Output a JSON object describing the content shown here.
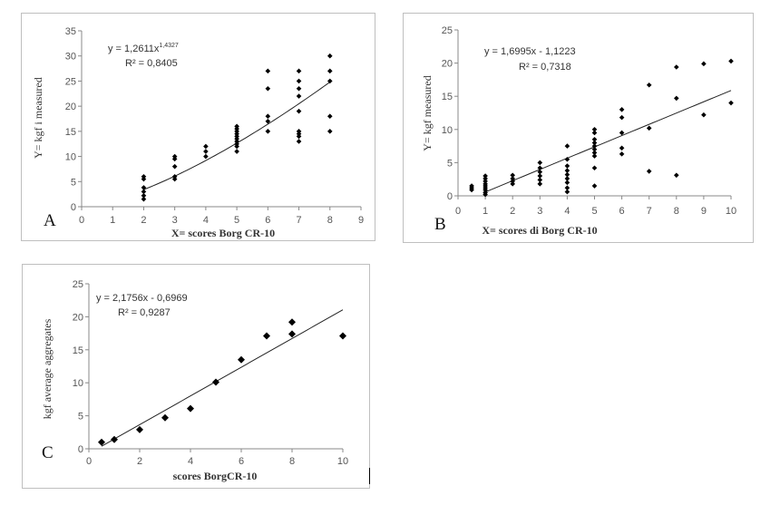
{
  "chart_data": [
    {
      "type": "scatter",
      "panel_label": "A",
      "xlabel": "X= scores Borg CR-10",
      "ylabel": "Y= kgf i measured",
      "xlim": [
        0,
        9
      ],
      "ylim": [
        0,
        35
      ],
      "xticks": [
        "0",
        "1",
        "2",
        "3",
        "4",
        "5",
        "6",
        "7",
        "8",
        "9"
      ],
      "yticks": [
        "0",
        "5",
        "10",
        "15",
        "20",
        "25",
        "30",
        "35"
      ],
      "equation": "y = 1,2611x",
      "equation_exp": "1,4327",
      "r2": "R² = 0,8405",
      "fit": {
        "kind": "power",
        "a": 1.2611,
        "b": 1.4327,
        "x_range": [
          2,
          8
        ]
      },
      "series": [
        {
          "points": [
            [
              2,
              1.5
            ],
            [
              2,
              2.2
            ],
            [
              2,
              3
            ],
            [
              2,
              3.8
            ],
            [
              2,
              5.5
            ],
            [
              2,
              6
            ],
            [
              3,
              5.5
            ],
            [
              3,
              6
            ],
            [
              3,
              8
            ],
            [
              3,
              9.5
            ],
            [
              3,
              10
            ],
            [
              4,
              10
            ],
            [
              4,
              11
            ],
            [
              4,
              12
            ],
            [
              5,
              11
            ],
            [
              5,
              12
            ],
            [
              5,
              12.5
            ],
            [
              5,
              13
            ],
            [
              5,
              13.5
            ],
            [
              5,
              14
            ],
            [
              5,
              14.5
            ],
            [
              5,
              15
            ],
            [
              5,
              15.5
            ],
            [
              5,
              16
            ],
            [
              6,
              15
            ],
            [
              6,
              17
            ],
            [
              6,
              18
            ],
            [
              6,
              23.5
            ],
            [
              6,
              27
            ],
            [
              7,
              13
            ],
            [
              7,
              14
            ],
            [
              7,
              14.5
            ],
            [
              7,
              15
            ],
            [
              7,
              19
            ],
            [
              7,
              22
            ],
            [
              7,
              23.5
            ],
            [
              7,
              25
            ],
            [
              7,
              27
            ],
            [
              8,
              15
            ],
            [
              8,
              18
            ],
            [
              8,
              25
            ],
            [
              8,
              27
            ],
            [
              8,
              30
            ]
          ]
        }
      ]
    },
    {
      "type": "scatter",
      "panel_label": "B",
      "xlabel": "X= scores di Borg CR-10",
      "ylabel": "Y= kgf measured",
      "xlim": [
        0,
        10
      ],
      "ylim": [
        0,
        25
      ],
      "xticks": [
        "0",
        "1",
        "2",
        "3",
        "4",
        "5",
        "6",
        "7",
        "8",
        "9",
        "10"
      ],
      "yticks": [
        "0",
        "5",
        "10",
        "15",
        "20",
        "25"
      ],
      "equation": "y = 1,6995x - 1,1223",
      "equation_exp": "",
      "r2": "R² = 0,7318",
      "fit": {
        "kind": "linear",
        "a": 1.6995,
        "b": -1.1223,
        "x_range": [
          1,
          10
        ]
      },
      "series": [
        {
          "points": [
            [
              0.5,
              0.9
            ],
            [
              0.5,
              1.2
            ],
            [
              0.5,
              1.5
            ],
            [
              1,
              0.2
            ],
            [
              1,
              0.5
            ],
            [
              1,
              0.9
            ],
            [
              1,
              1.2
            ],
            [
              1,
              1.5
            ],
            [
              1,
              1.8
            ],
            [
              1,
              2.2
            ],
            [
              1,
              2.6
            ],
            [
              1,
              3
            ],
            [
              2,
              1.8
            ],
            [
              2,
              2.2
            ],
            [
              2,
              2.6
            ],
            [
              2,
              3.1
            ],
            [
              3,
              1.8
            ],
            [
              3,
              2.4
            ],
            [
              3,
              3
            ],
            [
              3,
              3.6
            ],
            [
              3,
              4.2
            ],
            [
              3,
              5
            ],
            [
              4,
              0.6
            ],
            [
              4,
              1.2
            ],
            [
              4,
              2
            ],
            [
              4,
              2.6
            ],
            [
              4,
              3.2
            ],
            [
              4,
              3.8
            ],
            [
              4,
              4.5
            ],
            [
              4,
              5.5
            ],
            [
              4,
              7.5
            ],
            [
              5,
              1.5
            ],
            [
              5,
              4.2
            ],
            [
              5,
              6
            ],
            [
              5,
              6.5
            ],
            [
              5,
              7
            ],
            [
              5,
              7.5
            ],
            [
              5,
              8
            ],
            [
              5,
              8.5
            ],
            [
              5,
              9.5
            ],
            [
              5,
              10
            ],
            [
              6,
              6.3
            ],
            [
              6,
              7.2
            ],
            [
              6,
              9.5
            ],
            [
              6,
              11.8
            ],
            [
              6,
              13
            ],
            [
              7,
              3.7
            ],
            [
              7,
              10.2
            ],
            [
              7,
              16.7
            ],
            [
              8,
              3.1
            ],
            [
              8,
              14.7
            ],
            [
              8,
              19.4
            ],
            [
              9,
              12.2
            ],
            [
              9,
              19.9
            ],
            [
              10,
              14
            ],
            [
              10,
              20.3
            ]
          ]
        }
      ]
    },
    {
      "type": "scatter",
      "panel_label": "C",
      "xlabel": "scores BorgCR-10",
      "ylabel": "kgf average aggregates",
      "xlim": [
        0,
        10
      ],
      "ylim": [
        0,
        25
      ],
      "xticks": [
        "0",
        "2",
        "4",
        "6",
        "8",
        "10"
      ],
      "yticks": [
        "0",
        "5",
        "10",
        "15",
        "20",
        "25"
      ],
      "equation": "y = 2,1756x - 0,6969",
      "equation_exp": "",
      "r2": "R² = 0,9287",
      "fit": {
        "kind": "linear",
        "a": 2.1756,
        "b": -0.6969,
        "x_range": [
          0.5,
          10
        ]
      },
      "series": [
        {
          "points": [
            [
              0.5,
              1
            ],
            [
              1,
              1.4
            ],
            [
              2,
              2.9
            ],
            [
              3,
              4.7
            ],
            [
              4,
              6.1
            ],
            [
              5,
              10.1
            ],
            [
              6,
              13.5
            ],
            [
              7,
              17.1
            ],
            [
              8,
              17.4
            ],
            [
              8,
              19.2
            ],
            [
              10,
              17.1
            ]
          ]
        }
      ]
    }
  ]
}
